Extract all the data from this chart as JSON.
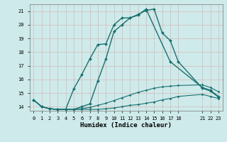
{
  "xlabel": "Humidex (Indice chaleur)",
  "background_color": "#ceeaea",
  "grid_color": "#d8b8b8",
  "line_color": "#1a7070",
  "xlim": [
    -0.5,
    23.5
  ],
  "ylim": [
    13.7,
    21.5
  ],
  "yticks": [
    14,
    15,
    16,
    17,
    18,
    19,
    20,
    21
  ],
  "xticks": [
    0,
    1,
    2,
    3,
    4,
    5,
    6,
    7,
    8,
    9,
    10,
    11,
    12,
    13,
    14,
    15,
    16,
    17,
    18,
    21,
    22,
    23
  ],
  "series": [
    {
      "x": [
        0,
        1,
        2,
        3,
        4,
        5,
        6,
        7,
        8,
        9,
        10,
        11,
        12,
        13,
        14,
        15,
        16,
        17,
        18,
        21,
        22,
        23
      ],
      "y": [
        14.5,
        14.0,
        13.85,
        13.8,
        13.8,
        13.8,
        13.8,
        13.8,
        13.8,
        13.85,
        13.9,
        14.0,
        14.1,
        14.15,
        14.25,
        14.35,
        14.5,
        14.6,
        14.75,
        14.9,
        14.75,
        14.6
      ],
      "markersize": 1.5,
      "linewidth": 0.8
    },
    {
      "x": [
        0,
        1,
        2,
        3,
        4,
        5,
        6,
        7,
        8,
        9,
        10,
        11,
        12,
        13,
        14,
        15,
        16,
        17,
        18,
        21,
        22,
        23
      ],
      "y": [
        14.5,
        14.0,
        13.85,
        13.8,
        13.8,
        13.8,
        13.85,
        13.95,
        14.1,
        14.25,
        14.45,
        14.65,
        14.85,
        15.05,
        15.2,
        15.35,
        15.45,
        15.5,
        15.55,
        15.6,
        15.4,
        15.1
      ],
      "markersize": 1.5,
      "linewidth": 0.8
    },
    {
      "x": [
        0,
        1,
        2,
        3,
        4,
        5,
        6,
        7,
        8,
        9,
        10,
        11,
        12,
        13,
        14,
        15,
        16,
        17,
        18,
        21,
        22,
        23
      ],
      "y": [
        14.5,
        14.0,
        13.85,
        13.8,
        13.8,
        15.3,
        16.35,
        17.5,
        18.55,
        18.6,
        20.0,
        20.5,
        20.5,
        20.75,
        21.05,
        21.15,
        19.4,
        18.85,
        17.3,
        15.35,
        15.15,
        14.7
      ],
      "markersize": 2.0,
      "linewidth": 1.0
    },
    {
      "x": [
        0,
        1,
        2,
        3,
        4,
        5,
        6,
        7,
        8,
        9,
        10,
        11,
        12,
        13,
        14,
        17,
        21,
        22,
        23
      ],
      "y": [
        14.5,
        14.0,
        13.85,
        13.8,
        13.8,
        13.8,
        14.0,
        14.2,
        15.9,
        17.5,
        19.5,
        20.0,
        20.5,
        20.7,
        21.15,
        17.3,
        15.4,
        15.2,
        14.75
      ],
      "markersize": 2.0,
      "linewidth": 1.0
    }
  ]
}
